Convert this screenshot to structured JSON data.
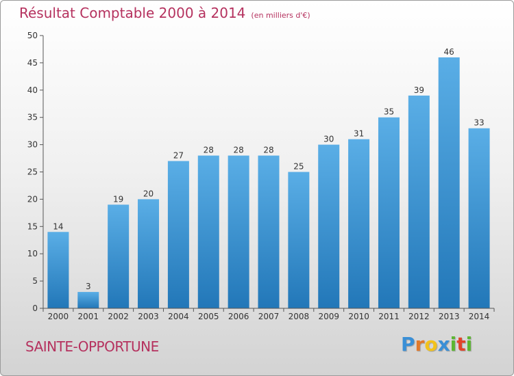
{
  "chart_data": {
    "type": "bar",
    "title": "Résultat Comptable 2000 à 2014",
    "subtitle": "(en milliers d'€)",
    "categories": [
      "2000",
      "2001",
      "2002",
      "2003",
      "2004",
      "2005",
      "2006",
      "2007",
      "2008",
      "2009",
      "2010",
      "2011",
      "2012",
      "2013",
      "2014"
    ],
    "values": [
      14,
      3,
      19,
      20,
      27,
      28,
      28,
      28,
      25,
      30,
      31,
      35,
      39,
      46,
      33
    ],
    "ylim": [
      0,
      50
    ],
    "yticks": [
      0,
      5,
      10,
      15,
      20,
      25,
      30,
      35,
      40,
      45,
      50
    ],
    "xlabel": "",
    "ylabel": "",
    "grid": false,
    "bar_color_top": "#5aaee6",
    "bar_color_bottom": "#2277b8"
  },
  "footer": {
    "commune": "SAINTE-OPPORTUNE",
    "logo_letters": [
      "P",
      "r",
      "o",
      "x",
      "i",
      "t",
      "i"
    ],
    "logo_colors": [
      "#3a8fd6",
      "#e2792a",
      "#f2c21b",
      "#3a8fd6",
      "#5cb631",
      "#e2442a",
      "#5cb631"
    ]
  },
  "colors": {
    "title": "#b5315e"
  }
}
